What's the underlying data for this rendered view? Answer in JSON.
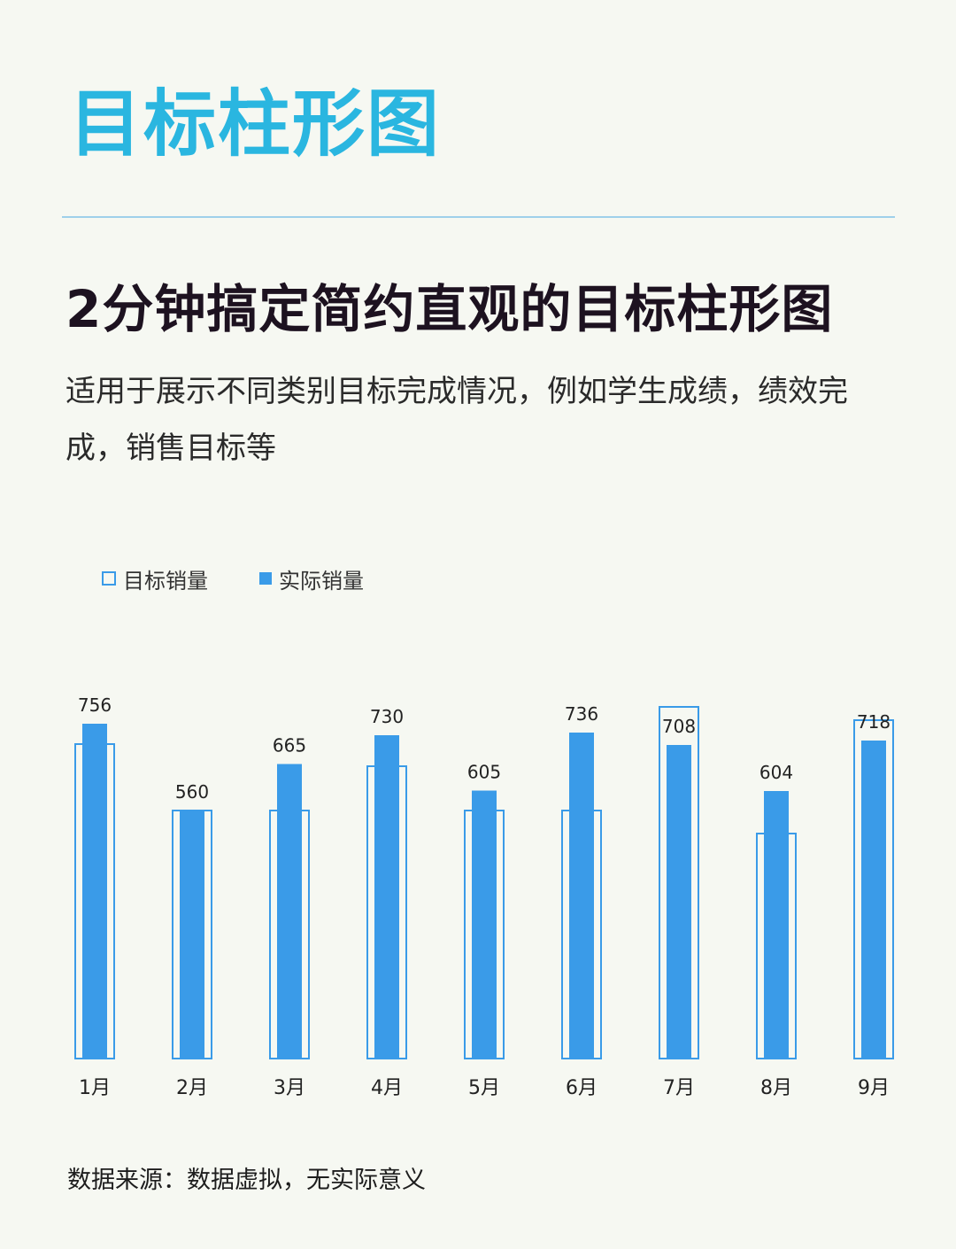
{
  "header": {
    "title": "目标柱形图",
    "subtitle": "2分钟搞定简约直观的目标柱形图",
    "description": "适用于展示不同类别目标完成情况，例如学生成绩，绩效完成，销售目标等"
  },
  "legend": {
    "target_label": "目标销量",
    "actual_label": "实际销量"
  },
  "colors": {
    "accent": "#3a9be8",
    "title": "#2ab6e0"
  },
  "chart_data": {
    "type": "bar",
    "categories": [
      "1月",
      "2月",
      "3月",
      "4月",
      "5月",
      "6月",
      "7月",
      "8月",
      "9月"
    ],
    "series": [
      {
        "name": "目标销量",
        "style": "outline",
        "values": [
          710,
          560,
          560,
          660,
          560,
          560,
          794,
          508,
          764
        ]
      },
      {
        "name": "实际销量",
        "style": "filled",
        "values": [
          756,
          560,
          665,
          730,
          605,
          736,
          708,
          604,
          718
        ]
      }
    ],
    "data_labels": [
      756,
      560,
      665,
      730,
      605,
      736,
      708,
      604,
      718
    ],
    "ylim": [
      0,
      850
    ],
    "grid": false,
    "legend_position": "top-left"
  },
  "footer": {
    "source": "数据来源：数据虚拟，无实际意义"
  }
}
